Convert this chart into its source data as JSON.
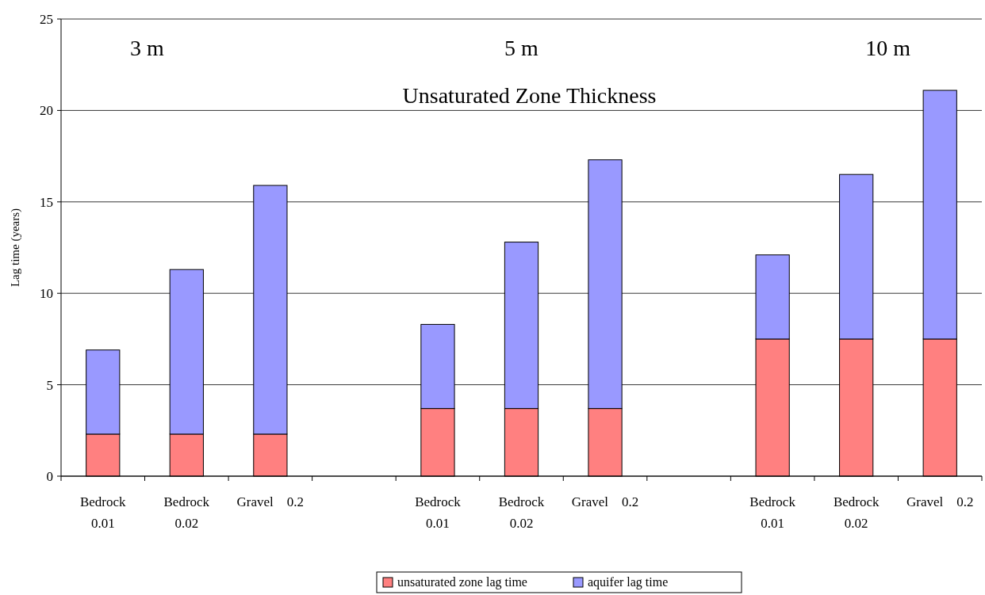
{
  "chart_data": {
    "type": "bar",
    "stacked": true,
    "ylabel": "Lag time (years)",
    "categories": [
      "Bedrock\n0.01",
      "Bedrock\n0.02",
      "Gravel    0.2",
      null,
      "Bedrock\n0.01",
      "Bedrock\n0.02",
      "Gravel    0.2",
      null,
      "Bedrock\n0.01",
      "Bedrock\n0.02",
      "Gravel    0.2"
    ],
    "series": [
      {
        "name": "unsaturated zone lag time",
        "color": "#ff8080",
        "values": [
          2.3,
          2.3,
          2.3,
          null,
          3.7,
          3.7,
          3.7,
          null,
          7.5,
          7.5,
          7.5
        ]
      },
      {
        "name": "aquifer lag time",
        "color": "#9999ff",
        "values": [
          4.6,
          9.0,
          13.6,
          null,
          4.6,
          9.1,
          13.6,
          null,
          4.6,
          9.0,
          13.6
        ]
      }
    ],
    "ylim": [
      0,
      25
    ],
    "yticks": [
      0,
      5,
      10,
      15,
      20,
      25
    ],
    "grid": "y",
    "legend": "bottom",
    "annotations": [
      "3 m",
      "5 m",
      "10 m",
      "Unsaturated Zone Thickness"
    ]
  }
}
